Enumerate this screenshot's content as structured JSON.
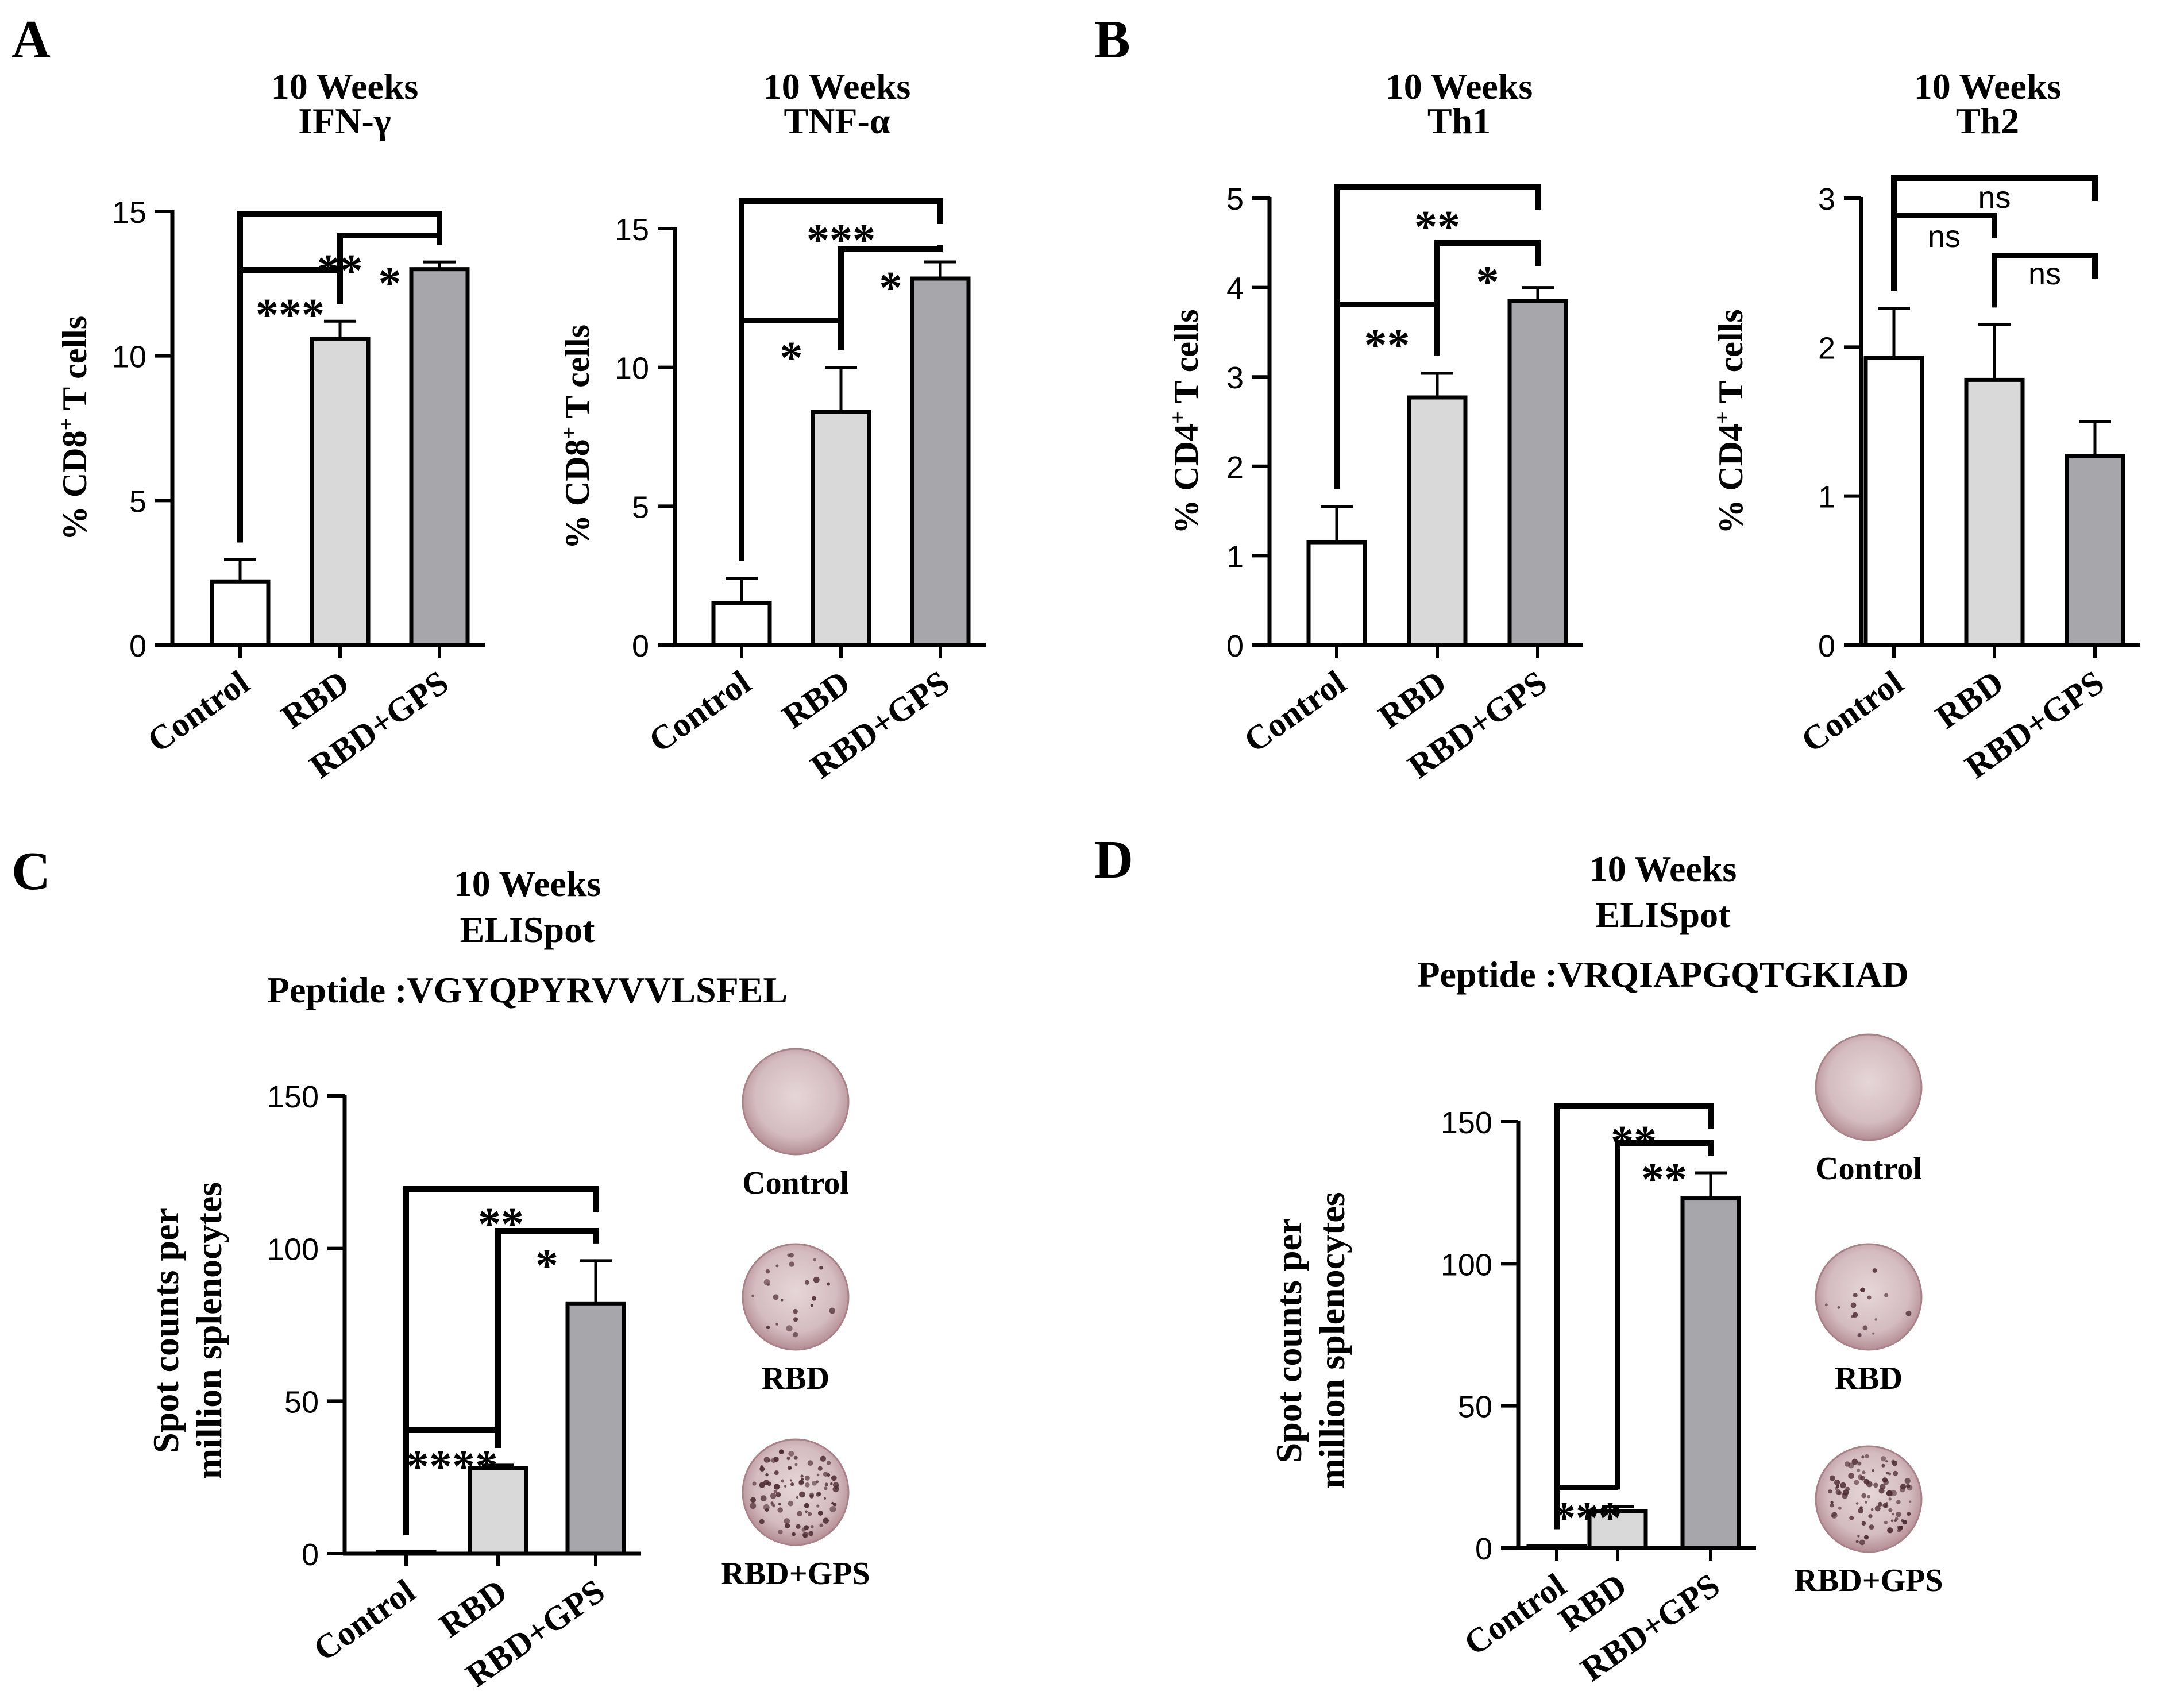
{
  "panel_letters": [
    "A",
    "B",
    "C",
    "D"
  ],
  "colors": {
    "control": "#ffffff",
    "rbd": "#d9d9d9",
    "rbd_gps": "#a6a6ab",
    "axis": "#000000",
    "well": "#c9a9ad"
  },
  "chart_data": [
    {
      "type": "bar",
      "panel": "A",
      "title": [
        "10 Weeks",
        "IFN-γ"
      ],
      "ylabel_main": "% CD8",
      "ylabel_sup": "+",
      "ylabel_tail": " T cells",
      "categories": [
        "Control",
        "RBD",
        "RBD+GPS"
      ],
      "values": [
        2.2,
        10.6,
        13.0
      ],
      "errors": [
        0.75,
        0.6,
        0.25
      ],
      "ylim": [
        0,
        15
      ],
      "yticks": [
        0,
        5,
        10,
        15
      ],
      "significance": [
        {
          "from": 0,
          "to": 1,
          "label": "***"
        },
        {
          "from": 1,
          "to": 2,
          "label": "*"
        },
        {
          "from": 0,
          "to": 2,
          "label": "**"
        }
      ]
    },
    {
      "type": "bar",
      "panel": "A",
      "title": [
        "10 Weeks",
        "TNF-α"
      ],
      "ylabel_main": "% CD8",
      "ylabel_sup": "+",
      "ylabel_tail": " T cells",
      "categories": [
        "Control",
        "RBD",
        "RBD+GPS"
      ],
      "values": [
        1.5,
        8.4,
        13.2
      ],
      "errors": [
        0.9,
        1.6,
        0.6
      ],
      "ylim": [
        0,
        15
      ],
      "yticks": [
        0,
        5,
        10,
        15
      ],
      "significance": [
        {
          "from": 0,
          "to": 1,
          "label": "*"
        },
        {
          "from": 1,
          "to": 2,
          "label": "*"
        },
        {
          "from": 0,
          "to": 2,
          "label": "***"
        }
      ]
    },
    {
      "type": "bar",
      "panel": "B",
      "title": [
        "10 Weeks",
        "Th1"
      ],
      "ylabel_main": "% CD4",
      "ylabel_sup": "+",
      "ylabel_tail": " T cells",
      "categories": [
        "Control",
        "RBD",
        "RBD+GPS"
      ],
      "values": [
        1.15,
        2.77,
        3.85
      ],
      "errors": [
        0.4,
        0.27,
        0.15
      ],
      "ylim": [
        0,
        5
      ],
      "yticks": [
        0,
        1,
        2,
        3,
        4,
        5
      ],
      "significance": [
        {
          "from": 0,
          "to": 1,
          "label": "**"
        },
        {
          "from": 1,
          "to": 2,
          "label": "*"
        },
        {
          "from": 0,
          "to": 2,
          "label": "**"
        }
      ]
    },
    {
      "type": "bar",
      "panel": "B",
      "title": [
        "10 Weeks",
        "Th2"
      ],
      "ylabel_main": "% CD4",
      "ylabel_sup": "+",
      "ylabel_tail": " T cells",
      "categories": [
        "Control",
        "RBD",
        "RBD+GPS"
      ],
      "values": [
        1.93,
        1.78,
        1.27
      ],
      "errors": [
        0.33,
        0.37,
        0.23
      ],
      "ylim": [
        0,
        3
      ],
      "yticks": [
        0,
        1,
        2,
        3
      ],
      "significance": [
        {
          "from": 0,
          "to": 1,
          "label": "ns"
        },
        {
          "from": 1,
          "to": 2,
          "label": "ns"
        },
        {
          "from": 0,
          "to": 2,
          "label": "ns"
        }
      ]
    },
    {
      "type": "bar",
      "panel": "C",
      "title": [
        "10 Weeks",
        "ELISpot",
        "Peptide :VGYQPYRVVVLSFEL"
      ],
      "ylabel_lines": [
        "Spot counts per",
        "million splenocytes"
      ],
      "categories": [
        "Control",
        "RBD",
        "RBD+GPS"
      ],
      "values": [
        0.5,
        28,
        82
      ],
      "errors": [
        0,
        1,
        14
      ],
      "ylim": [
        0,
        150
      ],
      "yticks": [
        0,
        50,
        100,
        150
      ],
      "significance": [
        {
          "from": 0,
          "to": 1,
          "label": "****"
        },
        {
          "from": 1,
          "to": 2,
          "label": "*"
        },
        {
          "from": 0,
          "to": 2,
          "label": "**"
        }
      ],
      "wells": [
        "Control",
        "RBD",
        "RBD+GPS"
      ]
    },
    {
      "type": "bar",
      "panel": "D",
      "title": [
        "10 Weeks",
        "ELISpot",
        "Peptide :VRQIAPGQTGKIAD"
      ],
      "ylabel_lines": [
        "Spot counts per",
        "million splenocytes"
      ],
      "categories": [
        "Control",
        "RBD",
        "RBD+GPS"
      ],
      "values": [
        0.5,
        13,
        123
      ],
      "errors": [
        0,
        1.5,
        9
      ],
      "ylim": [
        0,
        150
      ],
      "yticks": [
        0,
        50,
        100,
        150
      ],
      "significance": [
        {
          "from": 0,
          "to": 1,
          "label": "***"
        },
        {
          "from": 1,
          "to": 2,
          "label": "**"
        },
        {
          "from": 0,
          "to": 2,
          "label": "**"
        }
      ],
      "wells": [
        "Control",
        "RBD",
        "RBD+GPS"
      ]
    }
  ]
}
